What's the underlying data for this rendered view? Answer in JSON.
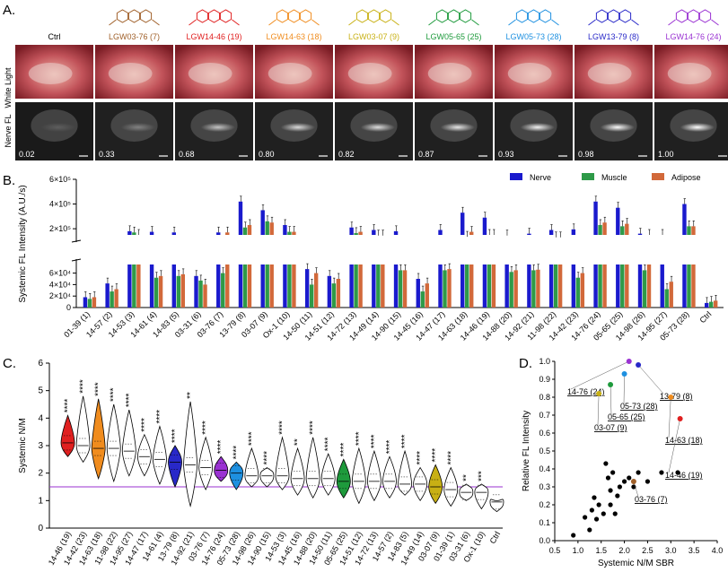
{
  "figure": {
    "panel_a": {
      "letter": "A.",
      "row_labels": [
        "White Light",
        "Nerve FL"
      ],
      "compounds": [
        {
          "label": "Ctrl",
          "color": "#000000",
          "value": "0.02"
        },
        {
          "label": "LGW03-76 (7)",
          "color": "#a0602a",
          "value": "0.33"
        },
        {
          "label": "LGW14-46 (19)",
          "color": "#e02020",
          "value": "0.68"
        },
        {
          "label": "LGW14-63 (18)",
          "color": "#f08c1e",
          "value": "0.80"
        },
        {
          "label": "LGW03-07 (9)",
          "color": "#c8b014",
          "value": "0.82"
        },
        {
          "label": "LGW05-65 (25)",
          "color": "#1e9a3c",
          "value": "0.87"
        },
        {
          "label": "LGW05-73 (28)",
          "color": "#1e90e0",
          "value": "0.93"
        },
        {
          "label": "LGW13-79 (8)",
          "color": "#2828c8",
          "value": "0.98"
        },
        {
          "label": "LGW14-76 (24)",
          "color": "#9a32d2",
          "value": "1.00"
        }
      ]
    },
    "panel_b": {
      "letter": "B."
    },
    "panel_c": {
      "letter": "C."
    },
    "panel_d": {
      "letter": "D."
    }
  },
  "chart_data": [
    {
      "type": "bar",
      "title": "",
      "ylabel": "Systemic FL Intensity (A.U./s)",
      "y_ticks_lower": [
        "0",
        "2×10⁴",
        "4×10⁴",
        "6×10⁴"
      ],
      "y_ticks_upper": [
        "2×10⁵",
        "4×10⁵",
        "6×10⁵"
      ],
      "ylim_lower": [
        0,
        75000
      ],
      "ylim_upper": [
        150000,
        600000
      ],
      "legend": [
        "Nerve",
        "Muscle",
        "Adipose"
      ],
      "colors": {
        "Nerve": "#1a1acd",
        "Muscle": "#2e9a48",
        "Adipose": "#d2693a"
      },
      "categories": [
        "01-39 (1)",
        "14-57 (2)",
        "14-53 (3)",
        "14-61 (4)",
        "14-83 (5)",
        "03-31 (6)",
        "03-76 (7)",
        "13-79 (8)",
        "03-07 (9)",
        "Ox-1 (10)",
        "14-50 (11)",
        "14-51 (12)",
        "14-72 (13)",
        "14-49 (14)",
        "14-90 (15)",
        "14-45 (16)",
        "14-47 (17)",
        "14-63 (18)",
        "14-46 (19)",
        "14-88 (20)",
        "14-92 (21)",
        "11-98 (22)",
        "14-42 (23)",
        "14-76 (24)",
        "05-65 (25)",
        "14-98 (26)",
        "14-95 (27)",
        "05-73 (28)",
        "Ctrl"
      ],
      "series": [
        {
          "name": "Nerve",
          "values": [
            18000,
            42000,
            180000,
            175000,
            170000,
            55000,
            170000,
            420000,
            350000,
            230000,
            67000,
            55000,
            210000,
            190000,
            180000,
            50000,
            190000,
            330000,
            290000,
            145000,
            160000,
            190000,
            195000,
            420000,
            370000,
            160000,
            150000,
            400000,
            8000
          ]
        },
        {
          "name": "Muscle",
          "values": [
            15000,
            28000,
            170000,
            52000,
            55000,
            47000,
            60000,
            210000,
            260000,
            175000,
            40000,
            42000,
            165000,
            145000,
            65000,
            28000,
            65000,
            135000,
            150000,
            62000,
            65000,
            130000,
            52000,
            230000,
            220000,
            65000,
            32000,
            220000,
            10000
          ]
        },
        {
          "name": "Adipose",
          "values": [
            18000,
            32000,
            150000,
            55000,
            58000,
            40000,
            170000,
            230000,
            250000,
            175000,
            60000,
            50000,
            175000,
            145000,
            65000,
            42000,
            67000,
            175000,
            150000,
            65000,
            66000,
            130000,
            60000,
            250000,
            240000,
            150000,
            45000,
            220000,
            12000
          ]
        }
      ]
    },
    {
      "type": "violin",
      "ylabel": "Systemic N/M",
      "ylim": [
        0,
        6
      ],
      "y_ticks": [
        "0",
        "1",
        "2",
        "3",
        "4",
        "5",
        "6"
      ],
      "reference_line": 1.5,
      "categories": [
        "14-46 (19)",
        "14-42 (23)",
        "14-63 (18)",
        "11-98 (22)",
        "14-95 (27)",
        "14-47 (17)",
        "14-61 (4)",
        "13-79 (8)",
        "14-92 (21)",
        "03-76 (7)",
        "14-76 (24)",
        "05-73 (28)",
        "14-98 (26)",
        "14-90 (15)",
        "14-53 (3)",
        "14-45 (16)",
        "14-88 (20)",
        "14-50 (11)",
        "05-65 (25)",
        "14-51 (12)",
        "14-72 (13)",
        "14-57 (2)",
        "14-83 (5)",
        "14-49 (14)",
        "03-07 (9)",
        "01-39 (1)",
        "03-31 (6)",
        "Ox-1 (10)",
        "Ctrl"
      ],
      "medians": [
        3.1,
        3.0,
        2.9,
        2.9,
        2.8,
        2.6,
        2.5,
        2.4,
        2.3,
        2.2,
        2.1,
        2.0,
        1.9,
        1.9,
        1.9,
        1.8,
        1.8,
        1.8,
        1.7,
        1.7,
        1.7,
        1.7,
        1.6,
        1.6,
        1.5,
        1.4,
        1.3,
        1.3,
        0.95
      ],
      "maxima": [
        4.1,
        4.8,
        4.7,
        4.5,
        4.3,
        3.4,
        3.7,
        3.0,
        4.6,
        3.3,
        2.6,
        2.4,
        2.9,
        2.2,
        3.3,
        2.9,
        3.3,
        2.7,
        2.5,
        2.9,
        2.8,
        2.6,
        2.8,
        2.2,
        2.3,
        2.2,
        1.6,
        1.6,
        1.0
      ],
      "minima": [
        2.6,
        2.4,
        1.8,
        1.7,
        1.9,
        1.9,
        1.6,
        1.5,
        0.8,
        1.4,
        1.7,
        1.4,
        1.5,
        1.5,
        1.4,
        1.2,
        1.1,
        1.2,
        1.1,
        0.9,
        1.0,
        1.1,
        1.2,
        1.0,
        0.9,
        0.8,
        1.0,
        0.7,
        0.6
      ],
      "significance": [
        "****",
        "****",
        "****",
        "****",
        "****",
        "****",
        "****",
        "****",
        "**",
        "****",
        "****",
        "****",
        "****",
        "****",
        "****",
        "**",
        "****",
        "****",
        "****",
        "****",
        "****",
        "****",
        "****",
        "****",
        "****",
        "****",
        "**",
        "***",
        ""
      ],
      "highlight_colors": {
        "14-46 (19)": "#e02020",
        "14-63 (18)": "#f08c1e",
        "13-79 (8)": "#2828c8",
        "14-76 (24)": "#9a32d2",
        "05-73 (28)": "#1e90e0",
        "05-65 (25)": "#1e9a3c",
        "03-07 (9)": "#c8b014"
      }
    },
    {
      "type": "scatter",
      "xlabel": "Systemic N/M SBR",
      "ylabel": "Relative FL Intensity",
      "xlim": [
        0.5,
        4.0
      ],
      "ylim": [
        0.0,
        1.0
      ],
      "x_ticks": [
        "0.5",
        "1.0",
        "1.5",
        "2.0",
        "2.5",
        "3.0",
        "3.5",
        "4.0"
      ],
      "y_ticks": [
        "0.0",
        "0.1",
        "0.2",
        "0.3",
        "0.4",
        "0.5",
        "0.6",
        "0.7",
        "0.8",
        "0.9",
        "1.0"
      ],
      "points_black": [
        [
          0.9,
          0.03
        ],
        [
          1.15,
          0.13
        ],
        [
          1.25,
          0.06
        ],
        [
          1.3,
          0.17
        ],
        [
          1.35,
          0.24
        ],
        [
          1.4,
          0.12
        ],
        [
          1.45,
          0.2
        ],
        [
          1.55,
          0.15
        ],
        [
          1.6,
          0.43
        ],
        [
          1.65,
          0.35
        ],
        [
          1.7,
          0.2
        ],
        [
          1.7,
          0.28
        ],
        [
          1.75,
          0.38
        ],
        [
          1.8,
          0.15
        ],
        [
          1.85,
          0.25
        ],
        [
          1.9,
          0.3
        ],
        [
          2.0,
          0.33
        ],
        [
          2.1,
          0.35
        ],
        [
          2.2,
          0.3
        ],
        [
          2.3,
          0.38
        ],
        [
          2.5,
          0.33
        ],
        [
          2.8,
          0.38
        ],
        [
          3.15,
          0.38
        ]
      ],
      "points_labeled": [
        {
          "label": "14-76 (24)",
          "x": 2.1,
          "y": 1.0,
          "color": "#9a32d2"
        },
        {
          "label": "13-79 (8)",
          "x": 2.3,
          "y": 0.98,
          "color": "#2828c8"
        },
        {
          "label": "05-73 (28)",
          "x": 2.0,
          "y": 0.93,
          "color": "#1e90e0"
        },
        {
          "label": "05-65 (25)",
          "x": 1.7,
          "y": 0.87,
          "color": "#1e9a3c"
        },
        {
          "label": "03-07 (9)",
          "x": 1.45,
          "y": 0.82,
          "color": "#c8b014"
        },
        {
          "label": "14-63 (18)",
          "x": 3.0,
          "y": 0.8,
          "color": "#f08c1e"
        },
        {
          "label": "14-46 (19)",
          "x": 3.2,
          "y": 0.68,
          "color": "#e02020"
        },
        {
          "label": "03-76 (7)",
          "x": 2.2,
          "y": 0.33,
          "color": "#a0602a"
        }
      ]
    }
  ]
}
